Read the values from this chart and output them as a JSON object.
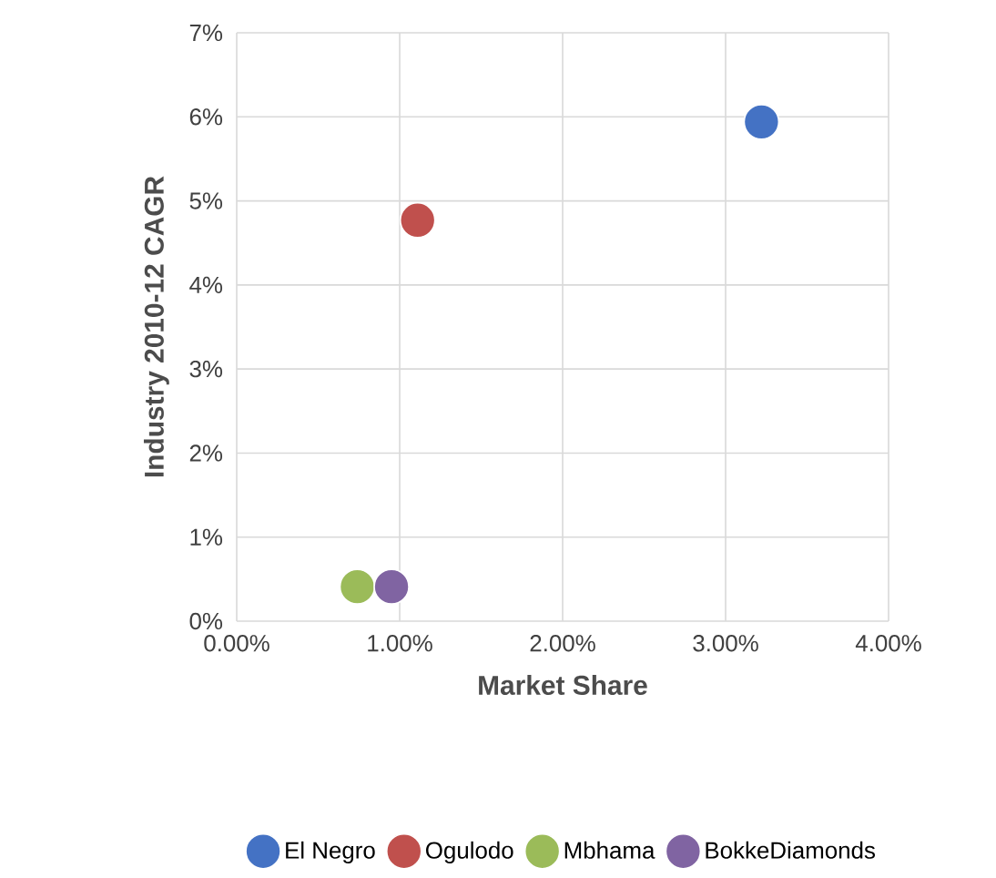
{
  "chart_data": {
    "type": "scatter",
    "xlabel": "Market Share",
    "ylabel": "Industry 2010-12 CAGR",
    "xlim": [
      0,
      4
    ],
    "xticks": [
      {
        "value": 0,
        "label": "0.00%"
      },
      {
        "value": 1,
        "label": "1.00%"
      },
      {
        "value": 2,
        "label": "2.00%"
      },
      {
        "value": 3,
        "label": "3.00%"
      },
      {
        "value": 4,
        "label": "4.00%"
      }
    ],
    "ylim": [
      0,
      7
    ],
    "yticks": [
      {
        "value": 0,
        "label": "0%"
      },
      {
        "value": 1,
        "label": "1%"
      },
      {
        "value": 2,
        "label": "2%"
      },
      {
        "value": 3,
        "label": "3%"
      },
      {
        "value": 4,
        "label": "4%"
      },
      {
        "value": 5,
        "label": "5%"
      },
      {
        "value": 6,
        "label": "6%"
      },
      {
        "value": 7,
        "label": "7%"
      }
    ],
    "grid": true,
    "legend": "bottom",
    "series": [
      {
        "name": "El Negro",
        "color": "#4472c4",
        "x": [
          3.22
        ],
        "values": [
          5.94
        ]
      },
      {
        "name": "Ogulodo",
        "color": "#c0504d",
        "x": [
          1.11
        ],
        "values": [
          4.77
        ]
      },
      {
        "name": "Mbhama",
        "color": "#9bbb59",
        "x": [
          0.74
        ],
        "values": [
          0.41
        ]
      },
      {
        "name": "BokkeDiamonds",
        "color": "#8064a2",
        "x": [
          0.95
        ],
        "values": [
          0.41
        ]
      }
    ]
  }
}
